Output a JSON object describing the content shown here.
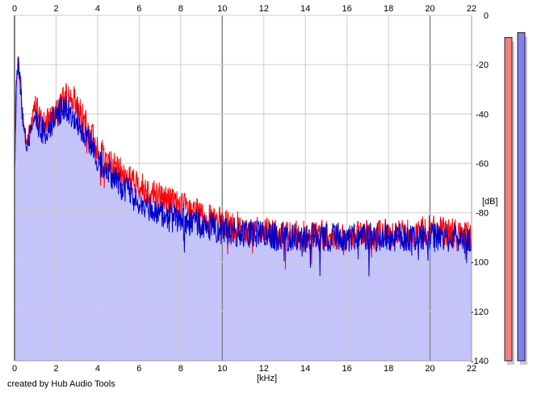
{
  "footer": {
    "credit": "created by Hub Audio Tools"
  },
  "chart_data": {
    "type": "area",
    "xlabel": "[kHz]",
    "ylabel": "[dB]",
    "x_ticks": [
      "0",
      "2",
      "4",
      "6",
      "8",
      "10",
      "12",
      "14",
      "16",
      "18",
      "20",
      "22"
    ],
    "y_ticks": [
      "0",
      "-20",
      "-40",
      "-60",
      "-80",
      "-100",
      "-120",
      "-140"
    ],
    "xlim": [
      0,
      22
    ],
    "ylim": [
      -140,
      0
    ],
    "grid": true,
    "colors": {
      "fill": "#c4c4fa",
      "red": "#ff0000",
      "blue": "#0000cc",
      "grid": "#cccccc",
      "grid_major": "#888888"
    },
    "series": [
      {
        "color": "red",
        "x": [
          0.0,
          0.1,
          0.2,
          0.3,
          0.4,
          0.6,
          0.8,
          1.0,
          1.2,
          1.5,
          1.8,
          2.0,
          2.2,
          2.4,
          2.6,
          2.8,
          3.0,
          3.2,
          3.5,
          3.8,
          4.0,
          4.3,
          4.6,
          5.0,
          5.5,
          6.0,
          6.5,
          7.0,
          7.5,
          8.0,
          8.5,
          9.0,
          9.5,
          10.0,
          11.0,
          12.0,
          13.0,
          14.0,
          15.0,
          16.0,
          17.0,
          18.0,
          19.0,
          20.0,
          21.0,
          22.0
        ],
        "y": [
          -60,
          -23,
          -18,
          -28,
          -42,
          -52,
          -44,
          -36,
          -42,
          -45,
          -40,
          -37,
          -35,
          -33,
          -33,
          -34,
          -36,
          -40,
          -46,
          -50,
          -54,
          -57,
          -60,
          -63,
          -66,
          -69,
          -71,
          -73,
          -75,
          -77,
          -79,
          -81,
          -83,
          -84,
          -86,
          -88,
          -89,
          -89,
          -89,
          -90,
          -89,
          -88,
          -88,
          -87,
          -88,
          -90
        ]
      },
      {
        "color": "blue",
        "x": [
          0.0,
          0.1,
          0.2,
          0.3,
          0.4,
          0.6,
          0.8,
          1.0,
          1.2,
          1.5,
          1.8,
          2.0,
          2.2,
          2.4,
          2.6,
          2.8,
          3.0,
          3.2,
          3.5,
          3.8,
          4.0,
          4.3,
          4.6,
          5.0,
          5.5,
          6.0,
          6.5,
          7.0,
          7.5,
          8.0,
          8.5,
          9.0,
          9.5,
          10.0,
          11.0,
          12.0,
          13.0,
          14.0,
          15.0,
          16.0,
          17.0,
          18.0,
          19.0,
          20.0,
          21.0,
          22.0
        ],
        "y": [
          -65,
          -25,
          -20,
          -30,
          -44,
          -54,
          -46,
          -40,
          -45,
          -48,
          -44,
          -40,
          -39,
          -38,
          -38,
          -40,
          -42,
          -45,
          -51,
          -55,
          -58,
          -61,
          -64,
          -68,
          -72,
          -76,
          -79,
          -81,
          -82,
          -83,
          -84,
          -85,
          -86,
          -87,
          -88,
          -89,
          -90,
          -90,
          -90,
          -90,
          -90,
          -90,
          -90,
          -90,
          -90,
          -91
        ]
      }
    ],
    "level_meters": [
      {
        "channel": "red",
        "value_db": -9,
        "color": "#f08080"
      },
      {
        "channel": "blue",
        "value_db": -7,
        "color": "#8080f0"
      }
    ]
  }
}
